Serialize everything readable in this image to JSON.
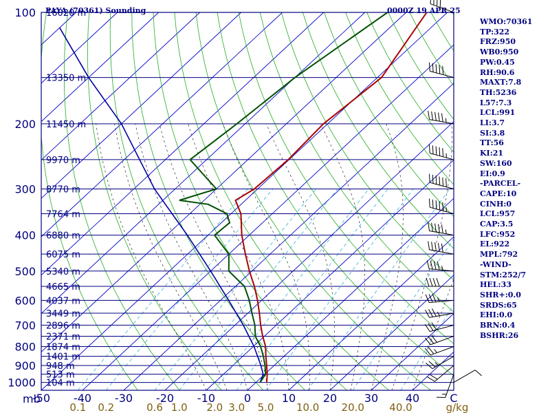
{
  "header": {
    "station": "PAYA (70361) Sounding",
    "valid_time": "0000Z 19 APR 25"
  },
  "indices": [
    "WMO:70361",
    "TP:322",
    "FRZ:950",
    "WB0:950",
    "PW:0.45",
    "RH:90.6",
    "MAXT:7.8",
    "TH:5236",
    "L57:7.3",
    "LCL:991",
    "LI:3.7",
    "SI:3.8",
    "TT:56",
    "KI:21",
    "SW:160",
    "EI:0.9",
    "-PARCEL-",
    "CAPE:10",
    "CINH:0",
    "LCL:957",
    "CAP:3.5",
    "LFC:952",
    "EL:922",
    "MPL:792",
    "-WIND-",
    "STM:252/7",
    "HEL:33",
    "SHR+:0.0",
    "SRDS:65",
    "EHI:0.0",
    "BRN:0.4",
    "BSHR:26"
  ],
  "colors": {
    "frame": "#000080",
    "isobar": "#000080",
    "isotherm": "#0000cd",
    "dry_adiabat": "#22aa22",
    "moist_adiabat": "#2a2a2a",
    "mixing_ratio": "#30b0d8",
    "temperature": "#aa0000",
    "dewpoint": "#005000",
    "parcel": "#0000a0",
    "axis_text": "#000080",
    "mixing_text": "#806010",
    "wind": "#000000"
  },
  "chart_data": {
    "type": "skew-t",
    "pressure_levels": [
      {
        "p": 100,
        "height": "16020 m"
      },
      {
        "p": 150,
        "height": "13350 m"
      },
      {
        "p": 200,
        "height": "11450 m"
      },
      {
        "p": 250,
        "height": "9970 m"
      },
      {
        "p": 300,
        "height": "8770 m"
      },
      {
        "p": 350,
        "height": "7764 m"
      },
      {
        "p": 400,
        "height": "6880 m"
      },
      {
        "p": 450,
        "height": "6075 m"
      },
      {
        "p": 500,
        "height": "5340 m"
      },
      {
        "p": 550,
        "height": "4665 m"
      },
      {
        "p": 600,
        "height": "4037 m"
      },
      {
        "p": 650,
        "height": "3449 m"
      },
      {
        "p": 700,
        "height": "2896 m"
      },
      {
        "p": 750,
        "height": "2371 m"
      },
      {
        "p": 800,
        "height": "1874 m"
      },
      {
        "p": 850,
        "height": "1401 m"
      },
      {
        "p": 900,
        "height": "948 m"
      },
      {
        "p": 950,
        "height": "513 m"
      },
      {
        "p": 1000,
        "height": "104 m"
      }
    ],
    "pressure_tick_labels": [
      "100",
      "200",
      "300",
      "400",
      "500",
      "600",
      "700",
      "800",
      "900",
      "1000"
    ],
    "pressure_axis_label": "mb",
    "temperature_ticks": [
      -50,
      -40,
      -30,
      -20,
      -10,
      0,
      10,
      20,
      30,
      40
    ],
    "temperature_axis_label": "C",
    "mixing_ratio_labels": [
      {
        "w": 0.1,
        "label": "0.1"
      },
      {
        "w": 0.2,
        "label": "0.2"
      },
      {
        "w": 0.6,
        "label": "0.6"
      },
      {
        "w": 1.0,
        "label": "1.0"
      },
      {
        "w": 2.0,
        "label": "2.0"
      },
      {
        "w": 3.0,
        "label": "3.0"
      },
      {
        "w": 5.0,
        "label": "5.0"
      },
      {
        "w": 10.0,
        "label": "10.0"
      },
      {
        "w": 20.0,
        "label": "20.0"
      },
      {
        "w": 40.0,
        "label": "40.0"
      }
    ],
    "mixing_ratio_unit": "g/kg",
    "pressure_range": [
      100,
      1050
    ],
    "temperature_range_at_bottom": [
      -50,
      50
    ],
    "temperature_profile": [
      {
        "p": 1000,
        "t": 2.6
      },
      {
        "p": 950,
        "t": 0.6
      },
      {
        "p": 900,
        "t": -1.8
      },
      {
        "p": 850,
        "t": -4.4
      },
      {
        "p": 800,
        "t": -7.0
      },
      {
        "p": 750,
        "t": -10.4
      },
      {
        "p": 700,
        "t": -13.8
      },
      {
        "p": 650,
        "t": -17.2
      },
      {
        "p": 600,
        "t": -21.0
      },
      {
        "p": 550,
        "t": -25.4
      },
      {
        "p": 500,
        "t": -30.6
      },
      {
        "p": 450,
        "t": -36.0
      },
      {
        "p": 400,
        "t": -41.8
      },
      {
        "p": 350,
        "t": -47.6
      },
      {
        "p": 322,
        "t": -52.4
      },
      {
        "p": 300,
        "t": -50.8
      },
      {
        "p": 250,
        "t": -50.2
      },
      {
        "p": 200,
        "t": -51.0
      },
      {
        "p": 150,
        "t": -49.0
      },
      {
        "p": 100,
        "t": -55.0
      },
      {
        "p": 97,
        "t": -56.0
      }
    ],
    "dewpoint_profile": [
      {
        "p": 1000,
        "td": 1.0
      },
      {
        "p": 950,
        "td": 0.2
      },
      {
        "p": 900,
        "td": -2.2
      },
      {
        "p": 850,
        "td": -5.0
      },
      {
        "p": 800,
        "td": -8.2
      },
      {
        "p": 750,
        "td": -12.2
      },
      {
        "p": 700,
        "td": -15.2
      },
      {
        "p": 650,
        "td": -19.0
      },
      {
        "p": 600,
        "td": -23.0
      },
      {
        "p": 550,
        "td": -27.8
      },
      {
        "p": 500,
        "td": -35.6
      },
      {
        "p": 450,
        "td": -40.0
      },
      {
        "p": 400,
        "td": -48.4
      },
      {
        "p": 370,
        "td": -48.0
      },
      {
        "p": 350,
        "td": -51.0
      },
      {
        "p": 330,
        "td": -58.0
      },
      {
        "p": 322,
        "td": -66.0
      },
      {
        "p": 300,
        "td": -60.0
      },
      {
        "p": 250,
        "td": -74.0
      },
      {
        "p": 200,
        "td": -72.0
      },
      {
        "p": 150,
        "td": -70.0
      },
      {
        "p": 100,
        "td": -64.5
      },
      {
        "p": 97,
        "td": -65.0
      }
    ],
    "parcel_path": [
      {
        "p": 1000,
        "t": 1.0
      },
      {
        "p": 950,
        "t": -0.4
      },
      {
        "p": 900,
        "t": -3.2
      },
      {
        "p": 850,
        "t": -6.4
      },
      {
        "p": 800,
        "t": -9.8
      },
      {
        "p": 700,
        "t": -18.0
      },
      {
        "p": 600,
        "t": -28.0
      },
      {
        "p": 500,
        "t": -40.0
      },
      {
        "p": 400,
        "t": -55.0
      },
      {
        "p": 300,
        "t": -75.0
      },
      {
        "p": 200,
        "t": -100.0
      },
      {
        "p": 150,
        "t": -120.0
      },
      {
        "p": 110,
        "t": -140.0
      }
    ],
    "wind_barbs": [
      {
        "p": 1000,
        "dir": 60,
        "spd": 10
      },
      {
        "p": 950,
        "dir": 200,
        "spd": 15
      },
      {
        "p": 900,
        "dir": 230,
        "spd": 20
      },
      {
        "p": 850,
        "dir": 240,
        "spd": 25
      },
      {
        "p": 800,
        "dir": 250,
        "spd": 25
      },
      {
        "p": 750,
        "dir": 250,
        "spd": 30
      },
      {
        "p": 700,
        "dir": 255,
        "spd": 30
      },
      {
        "p": 650,
        "dir": 260,
        "spd": 35
      },
      {
        "p": 600,
        "dir": 265,
        "spd": 35
      },
      {
        "p": 550,
        "dir": 270,
        "spd": 40
      },
      {
        "p": 500,
        "dir": 275,
        "spd": 45
      },
      {
        "p": 450,
        "dir": 280,
        "spd": 50
      },
      {
        "p": 400,
        "dir": 280,
        "spd": 55
      },
      {
        "p": 350,
        "dir": 285,
        "spd": 55
      },
      {
        "p": 300,
        "dir": 285,
        "spd": 60
      },
      {
        "p": 250,
        "dir": 285,
        "spd": 55
      },
      {
        "p": 200,
        "dir": 280,
        "spd": 55
      },
      {
        "p": 150,
        "dir": 285,
        "spd": 50
      },
      {
        "p": 100,
        "dir": 290,
        "spd": 40
      }
    ]
  }
}
